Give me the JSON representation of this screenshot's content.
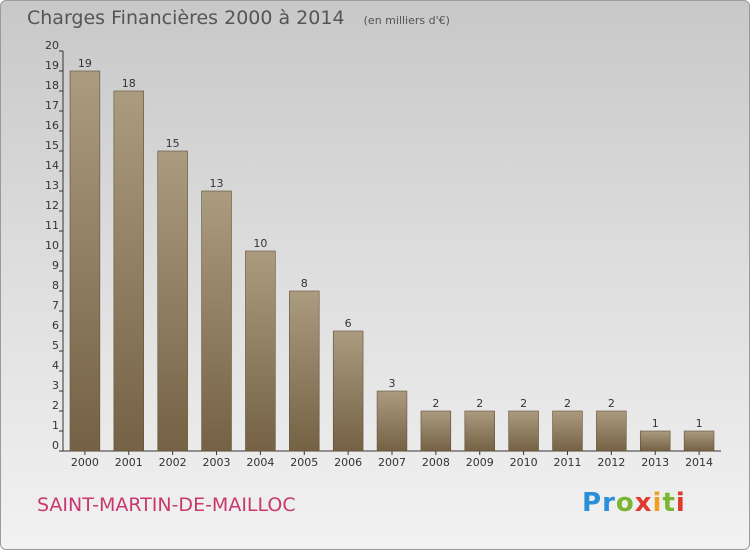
{
  "title": "Charges Financières 2000 à 2014",
  "subtitle": "(en milliers d'€)",
  "commune": "SAINT-MARTIN-DE-MAILLOC",
  "logo": {
    "letters": [
      {
        "ch": "P",
        "color": "#2a8fd8"
      },
      {
        "ch": "r",
        "color": "#2a8fd8"
      },
      {
        "ch": "o",
        "color": "#7ab630"
      },
      {
        "ch": "x",
        "color": "#e03a2e"
      },
      {
        "ch": "i",
        "color": "#f0a020"
      },
      {
        "ch": "t",
        "color": "#7ab630"
      },
      {
        "ch": "i",
        "color": "#e03a2e"
      }
    ]
  },
  "colors": {
    "bar_top": "#ab9b7f",
    "bar_bottom": "#756245",
    "title": "#555555",
    "commune": "#c8386e"
  },
  "chart_data": {
    "type": "bar",
    "categories": [
      "2000",
      "2001",
      "2002",
      "2003",
      "2004",
      "2005",
      "2006",
      "2007",
      "2008",
      "2009",
      "2010",
      "2011",
      "2012",
      "2013",
      "2014"
    ],
    "values": [
      19,
      18,
      15,
      13,
      10,
      8,
      6,
      3,
      2,
      2,
      2,
      2,
      2,
      1,
      1
    ],
    "ylim": [
      0,
      20
    ],
    "yticks": [
      0,
      1,
      2,
      3,
      4,
      5,
      6,
      7,
      8,
      9,
      10,
      11,
      12,
      13,
      14,
      15,
      16,
      17,
      18,
      19,
      20
    ],
    "grid": false,
    "data_labels": true
  }
}
